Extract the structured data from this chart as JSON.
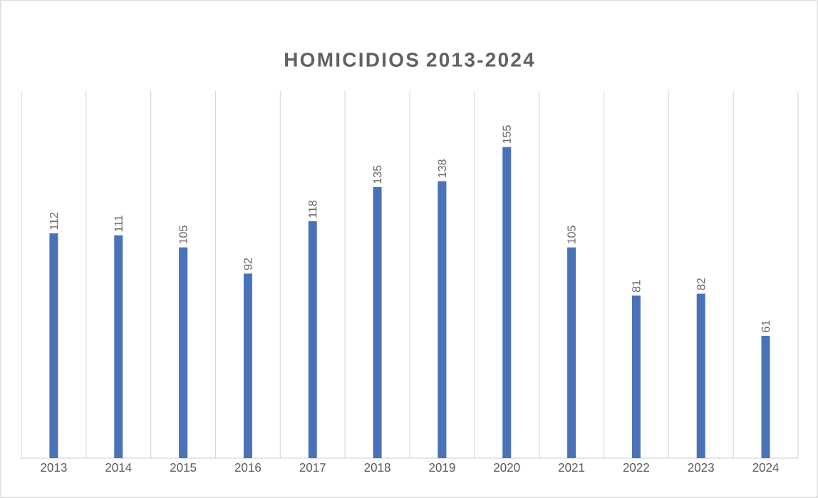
{
  "chart_data": {
    "type": "bar",
    "title": "HOMICIDIOS 2013-2024",
    "categories": [
      "2013",
      "2014",
      "2015",
      "2016",
      "2017",
      "2018",
      "2019",
      "2020",
      "2021",
      "2022",
      "2023",
      "2024"
    ],
    "values": [
      112,
      111,
      105,
      92,
      118,
      135,
      138,
      155,
      105,
      81,
      82,
      61
    ],
    "color": "#4a72b8",
    "data_labels": true,
    "grid": "x"
  }
}
